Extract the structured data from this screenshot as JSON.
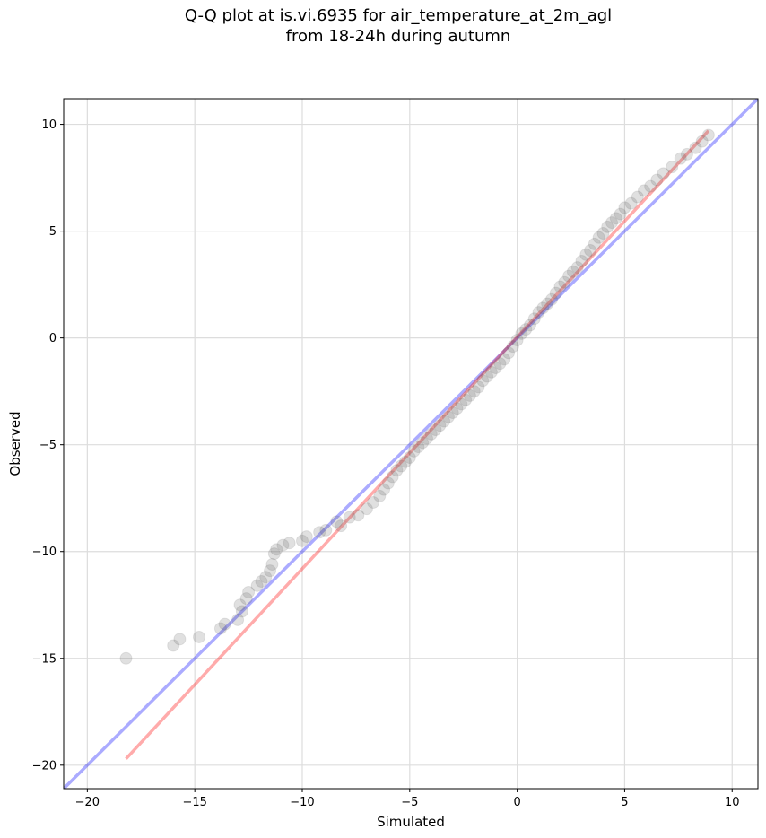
{
  "chart_data": {
    "type": "scatter",
    "title_line1": "Q-Q plot at is.vi.6935 for air_temperature_at_2m_agl",
    "title_line2": "from 18-24h during autumn",
    "xlabel": "Simulated",
    "ylabel": "Observed",
    "xlim": [
      -21.1,
      11.2
    ],
    "ylim": [
      -21.1,
      11.2
    ],
    "xticks": [
      -20,
      -15,
      -10,
      -5,
      0,
      5,
      10
    ],
    "yticks": [
      -20,
      -15,
      -10,
      -5,
      0,
      5,
      10
    ],
    "xtick_labels": [
      "−20",
      "−15",
      "−10",
      "−5",
      "0",
      "5",
      "10"
    ],
    "ytick_labels": [
      "−20",
      "−15",
      "−10",
      "−5",
      "0",
      "5",
      "10"
    ],
    "grid": true,
    "colors": {
      "points": "#555555",
      "identity_line": "#0000ff",
      "fit_line": "#ff0000",
      "grid": "#dddddd"
    },
    "identity_line": {
      "x": [
        -21.1,
        11.2
      ],
      "y": [
        -21.1,
        11.2
      ]
    },
    "fit_line": {
      "x": [
        -18.2,
        8.9
      ],
      "y": [
        -19.7,
        9.7
      ]
    },
    "points": [
      [
        -18.2,
        -15.0
      ],
      [
        -16.0,
        -14.4
      ],
      [
        -15.7,
        -14.1
      ],
      [
        -14.8,
        -14.0
      ],
      [
        -13.8,
        -13.6
      ],
      [
        -13.6,
        -13.4
      ],
      [
        -13.0,
        -13.2
      ],
      [
        -12.8,
        -12.8
      ],
      [
        -12.9,
        -12.5
      ],
      [
        -12.6,
        -12.2
      ],
      [
        -12.5,
        -11.9
      ],
      [
        -12.1,
        -11.6
      ],
      [
        -11.9,
        -11.4
      ],
      [
        -11.7,
        -11.2
      ],
      [
        -11.5,
        -10.9
      ],
      [
        -11.4,
        -10.6
      ],
      [
        -11.3,
        -10.1
      ],
      [
        -11.2,
        -9.9
      ],
      [
        -10.9,
        -9.7
      ],
      [
        -10.6,
        -9.6
      ],
      [
        -10.0,
        -9.5
      ],
      [
        -9.8,
        -9.3
      ],
      [
        -9.2,
        -9.1
      ],
      [
        -8.9,
        -9.0
      ],
      [
        -8.2,
        -8.8
      ],
      [
        -8.4,
        -8.6
      ],
      [
        -7.8,
        -8.4
      ],
      [
        -7.4,
        -8.3
      ],
      [
        -7.0,
        -8.0
      ],
      [
        -6.7,
        -7.7
      ],
      [
        -6.4,
        -7.4
      ],
      [
        -6.2,
        -7.1
      ],
      [
        -6.0,
        -6.8
      ],
      [
        -5.8,
        -6.5
      ],
      [
        -5.6,
        -6.2
      ],
      [
        -5.4,
        -6.0
      ],
      [
        -5.2,
        -5.8
      ],
      [
        -5.0,
        -5.6
      ],
      [
        -4.8,
        -5.3
      ],
      [
        -4.6,
        -5.1
      ],
      [
        -4.4,
        -4.9
      ],
      [
        -4.2,
        -4.7
      ],
      [
        -4.0,
        -4.5
      ],
      [
        -3.8,
        -4.3
      ],
      [
        -3.6,
        -4.1
      ],
      [
        -3.4,
        -3.9
      ],
      [
        -3.2,
        -3.7
      ],
      [
        -3.0,
        -3.5
      ],
      [
        -2.8,
        -3.3
      ],
      [
        -2.6,
        -3.1
      ],
      [
        -2.4,
        -2.9
      ],
      [
        -2.2,
        -2.7
      ],
      [
        -2.0,
        -2.5
      ],
      [
        -1.8,
        -2.3
      ],
      [
        -1.6,
        -2.0
      ],
      [
        -1.4,
        -1.8
      ],
      [
        -1.2,
        -1.6
      ],
      [
        -1.0,
        -1.4
      ],
      [
        -0.8,
        -1.2
      ],
      [
        -0.6,
        -1.0
      ],
      [
        -0.4,
        -0.7
      ],
      [
        -0.2,
        -0.4
      ],
      [
        0.0,
        -0.1
      ],
      [
        0.2,
        0.2
      ],
      [
        0.4,
        0.4
      ],
      [
        0.6,
        0.6
      ],
      [
        0.8,
        0.9
      ],
      [
        1.0,
        1.2
      ],
      [
        1.2,
        1.4
      ],
      [
        1.4,
        1.6
      ],
      [
        1.6,
        1.8
      ],
      [
        1.8,
        2.1
      ],
      [
        2.0,
        2.4
      ],
      [
        2.2,
        2.6
      ],
      [
        2.4,
        2.9
      ],
      [
        2.6,
        3.1
      ],
      [
        2.8,
        3.3
      ],
      [
        3.0,
        3.6
      ],
      [
        3.2,
        3.9
      ],
      [
        3.4,
        4.1
      ],
      [
        3.6,
        4.4
      ],
      [
        3.8,
        4.7
      ],
      [
        4.0,
        4.9
      ],
      [
        4.2,
        5.2
      ],
      [
        4.4,
        5.4
      ],
      [
        4.6,
        5.6
      ],
      [
        4.8,
        5.8
      ],
      [
        5.0,
        6.1
      ],
      [
        5.3,
        6.3
      ],
      [
        5.6,
        6.6
      ],
      [
        5.9,
        6.9
      ],
      [
        6.2,
        7.1
      ],
      [
        6.5,
        7.4
      ],
      [
        6.8,
        7.7
      ],
      [
        7.2,
        8.0
      ],
      [
        7.6,
        8.4
      ],
      [
        7.9,
        8.6
      ],
      [
        8.3,
        8.9
      ],
      [
        8.6,
        9.2
      ],
      [
        8.9,
        9.5
      ]
    ]
  }
}
